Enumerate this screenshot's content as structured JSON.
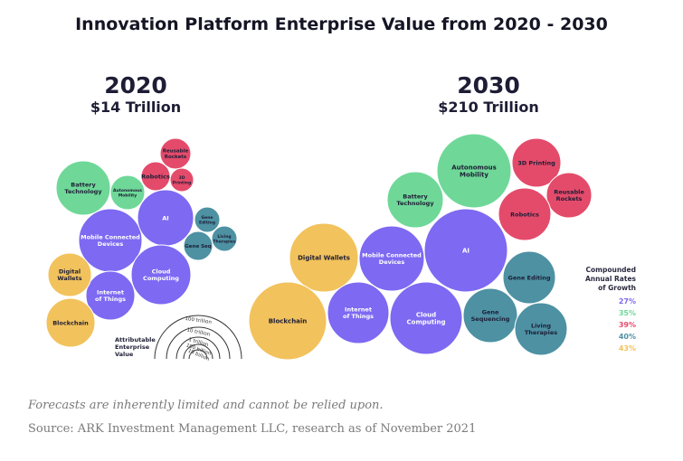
{
  "title": "Innovation Platform Enterprise Value from 2020 - 2030",
  "colors": {
    "green": "#6fd898",
    "purple": "#7d69f2",
    "red": "#e44b6b",
    "teal": "#4d91a3",
    "yellow": "#f2c25c",
    "text": "#1d1d35"
  },
  "chart_data": [
    {
      "type": "bubble",
      "year": "2020",
      "total": "$14 Trillion",
      "bubbles": [
        {
          "label": "Battery Technology",
          "color": "green"
        },
        {
          "label": "Autonomous Mobility",
          "color": "green"
        },
        {
          "label": "Reusable Rockets",
          "color": "red"
        },
        {
          "label": "Robotics",
          "color": "red"
        },
        {
          "label": "3D Printing",
          "color": "red"
        },
        {
          "label": "Mobile Connected Devices",
          "color": "purple"
        },
        {
          "label": "AI",
          "color": "purple"
        },
        {
          "label": "Gene Editing",
          "color": "teal"
        },
        {
          "label": "Living Therapies",
          "color": "teal"
        },
        {
          "label": "Gene Seq",
          "color": "teal"
        },
        {
          "label": "Cloud Computing",
          "color": "purple"
        },
        {
          "label": "Internet of Things",
          "color": "purple"
        },
        {
          "label": "Digital Wallets",
          "color": "yellow"
        },
        {
          "label": "Blockchain",
          "color": "yellow"
        }
      ]
    },
    {
      "type": "bubble",
      "year": "2030",
      "total": "$210 Trillion",
      "bubbles": [
        {
          "label": "Autonomous Mobility",
          "color": "green"
        },
        {
          "label": "3D Printing",
          "color": "red"
        },
        {
          "label": "Reusable Rockets",
          "color": "red"
        },
        {
          "label": "Battery Technology",
          "color": "green"
        },
        {
          "label": "Robotics",
          "color": "red"
        },
        {
          "label": "AI",
          "color": "purple"
        },
        {
          "label": "Digital Wallets",
          "color": "yellow"
        },
        {
          "label": "Mobile Connected Devices",
          "color": "purple"
        },
        {
          "label": "Gene Editing",
          "color": "teal"
        },
        {
          "label": "Blockchain",
          "color": "yellow"
        },
        {
          "label": "Internet of Things",
          "color": "purple"
        },
        {
          "label": "Cloud Computing",
          "color": "purple"
        },
        {
          "label": "Gene Sequencing",
          "color": "teal"
        },
        {
          "label": "Living Therapies",
          "color": "teal"
        }
      ]
    }
  ],
  "scale_legend": {
    "title": "Attributable Enterprise Value",
    "rings": [
      "100 trillion",
      "10 trillion",
      "1 trillion",
      "100 billion",
      "10 billion"
    ]
  },
  "growth_legend": {
    "title": "Compounded Annual Rates of Growth",
    "rates": [
      {
        "value": "27%",
        "color": "purple"
      },
      {
        "value": "35%",
        "color": "green"
      },
      {
        "value": "39%",
        "color": "red"
      },
      {
        "value": "40%",
        "color": "teal"
      },
      {
        "value": "43%",
        "color": "yellow"
      }
    ]
  },
  "footnotes": {
    "disclaimer": "Forecasts are inherently limited and cannot be relied upon.",
    "source": "Source: ARK Investment Management LLC, research as of November 2021"
  }
}
